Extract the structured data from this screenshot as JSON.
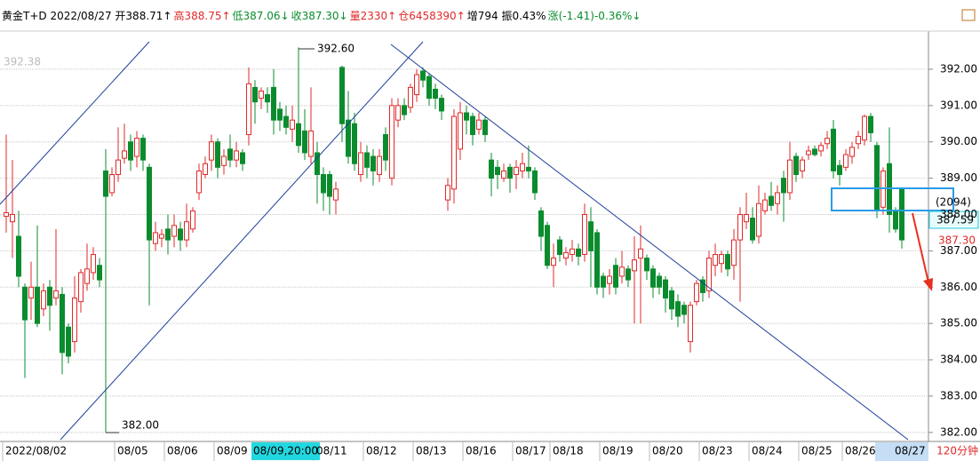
{
  "header": {
    "segments": [
      {
        "text": "黄金T+D 2022/08/27 开388.71↑",
        "color": "#000000"
      },
      {
        "text": "高388.75↑",
        "color": "#e0292a"
      },
      {
        "text": "低387.06↓",
        "color": "#0a8c2e"
      },
      {
        "text": "收387.30↓",
        "color": "#0a8c2e"
      },
      {
        "text": "量2330↑",
        "color": "#e0292a"
      },
      {
        "text": "仓6458390↑",
        "color": "#e0292a"
      },
      {
        "text": "增794 振0.43%",
        "color": "#000000"
      },
      {
        "text": "涨(-1.41)-0.36%↓",
        "color": "#0a8c2e"
      }
    ]
  },
  "chart_data": {
    "type": "candlestick",
    "up_color": "#e0292a",
    "down_color": "#0a8c2e",
    "ylim": [
      381.8,
      393.05
    ],
    "yticks": [
      {
        "value": 382,
        "label": "382.00"
      },
      {
        "value": 383,
        "label": "383.00"
      },
      {
        "value": 384,
        "label": "384.00"
      },
      {
        "value": 385,
        "label": "385.00"
      },
      {
        "value": 386,
        "label": "386.00"
      },
      {
        "value": 387,
        "label": "387.00"
      },
      {
        "value": 388,
        "label": "388.00"
      },
      {
        "value": 389,
        "label": "389.00"
      },
      {
        "value": 390,
        "label": "390.00"
      },
      {
        "value": 391,
        "label": "391.00"
      },
      {
        "value": 392,
        "label": "392.00"
      }
    ],
    "grid": true,
    "period": "120分钟",
    "annotations": [
      "392.60",
      "382.00",
      "392.38"
    ],
    "crosshair": {
      "x_label": "08/09,20:00",
      "y_label": "387.59",
      "count_label": "(2094)"
    },
    "last_price_label": "387.30",
    "categories": [
      "2022/08/02",
      null,
      null,
      null,
      null,
      null,
      null,
      null,
      null,
      null,
      null,
      null,
      null,
      null,
      null,
      null,
      null,
      null,
      "08/05",
      null,
      null,
      null,
      null,
      null,
      null,
      null,
      "08/06",
      null,
      null,
      null,
      null,
      null,
      null,
      null,
      "08/09",
      null,
      null,
      null,
      null,
      null,
      null,
      null,
      null,
      null,
      null,
      null,
      null,
      null,
      null,
      null,
      "08/11",
      null,
      null,
      null,
      null,
      null,
      null,
      null,
      "08/12",
      null,
      null,
      null,
      null,
      null,
      null,
      null,
      "08/13",
      null,
      null,
      null,
      null,
      null,
      null,
      null,
      "08/16",
      null,
      null,
      null,
      null,
      null,
      null,
      null,
      "08/17",
      null,
      null,
      null,
      null,
      null,
      "08/18",
      null,
      null,
      null,
      null,
      null,
      null,
      null,
      "08/19",
      null,
      null,
      null,
      null,
      null,
      null,
      null,
      "08/20",
      null,
      null,
      null,
      null,
      null,
      null,
      null,
      "08/23",
      null,
      null,
      null,
      null,
      null,
      null,
      null,
      "08/24",
      null,
      null,
      null,
      null,
      null,
      null,
      null,
      "08/25",
      null,
      null,
      null,
      null,
      null,
      null,
      "08/26",
      null,
      null,
      null,
      null,
      null,
      null,
      null,
      "08/27",
      null
    ],
    "ohlc": [
      [
        387.95,
        390.2,
        387.5,
        388.05
      ],
      [
        387.8,
        389.5,
        386.8,
        388.0
      ],
      [
        387.4,
        388.1,
        386.0,
        386.3
      ],
      [
        386.0,
        386.1,
        383.5,
        385.1
      ],
      [
        385.7,
        386.7,
        385.1,
        386.0
      ],
      [
        386.0,
        387.7,
        384.9,
        385.0
      ],
      [
        385.4,
        386.1,
        385.2,
        385.9
      ],
      [
        386.0,
        386.2,
        384.8,
        385.5
      ],
      [
        385.7,
        387.6,
        385.5,
        385.9
      ],
      [
        385.8,
        386.0,
        383.6,
        384.2
      ],
      [
        384.9,
        385.0,
        383.9,
        384.1
      ],
      [
        384.5,
        386.3,
        384.2,
        385.7
      ],
      [
        385.6,
        386.5,
        385.3,
        386.4
      ],
      [
        386.1,
        387.2,
        385.9,
        386.5
      ],
      [
        386.4,
        387.1,
        386.2,
        386.9
      ],
      [
        386.6,
        386.8,
        386.0,
        386.2
      ],
      [
        389.2,
        389.8,
        382.0,
        388.5
      ],
      [
        388.6,
        389.3,
        388.5,
        389.1
      ],
      [
        389.1,
        390.4,
        388.9,
        389.5
      ],
      [
        389.55,
        390.5,
        389.4,
        389.75
      ],
      [
        390.0,
        390.2,
        389.2,
        389.5
      ],
      [
        389.6,
        390.3,
        389.3,
        390.1
      ],
      [
        390.1,
        390.2,
        389.2,
        389.5
      ],
      [
        389.3,
        389.4,
        385.5,
        387.3
      ],
      [
        387.2,
        387.8,
        387.0,
        387.5
      ],
      [
        387.35,
        387.6,
        387.1,
        387.45
      ],
      [
        387.6,
        388.0,
        386.9,
        387.3
      ],
      [
        387.4,
        388.0,
        387.1,
        387.7
      ],
      [
        387.6,
        387.8,
        387.0,
        387.3
      ],
      [
        387.3,
        388.3,
        387.1,
        387.8
      ],
      [
        387.6,
        388.2,
        387.5,
        388.1
      ],
      [
        388.6,
        389.4,
        388.4,
        389.2
      ],
      [
        389.1,
        389.6,
        389.0,
        389.4
      ],
      [
        389.5,
        390.2,
        389.2,
        390.0
      ],
      [
        390.0,
        390.1,
        389.0,
        389.3
      ],
      [
        389.35,
        389.8,
        389.1,
        389.6
      ],
      [
        389.8,
        390.2,
        389.3,
        389.5
      ],
      [
        389.5,
        390.0,
        389.3,
        389.75
      ],
      [
        389.7,
        389.8,
        389.2,
        389.4
      ],
      [
        390.2,
        392.05,
        389.9,
        391.6
      ],
      [
        391.5,
        391.7,
        390.5,
        391.1
      ],
      [
        391.2,
        391.5,
        390.9,
        391.4
      ],
      [
        391.3,
        391.5,
        390.8,
        391.1
      ],
      [
        391.5,
        392.0,
        390.2,
        390.6
      ],
      [
        390.9,
        391.1,
        390.3,
        390.6
      ],
      [
        390.7,
        391.0,
        390.2,
        390.4
      ],
      [
        390.35,
        391.0,
        390.0,
        390.6
      ],
      [
        390.5,
        392.6,
        389.7,
        389.9
      ],
      [
        390.3,
        390.9,
        389.5,
        389.7
      ],
      [
        389.6,
        391.5,
        389.4,
        390.3
      ],
      [
        389.7,
        390.0,
        388.3,
        389.1
      ],
      [
        389.1,
        389.3,
        388.1,
        388.6
      ],
      [
        389.1,
        389.2,
        388.0,
        388.5
      ],
      [
        388.4,
        388.9,
        388.0,
        388.7
      ],
      [
        392.05,
        392.1,
        390.0,
        390.5
      ],
      [
        390.6,
        391.4,
        389.4,
        389.6
      ],
      [
        390.5,
        390.8,
        389.2,
        389.4
      ],
      [
        389.1,
        390.0,
        388.9,
        389.7
      ],
      [
        389.7,
        389.9,
        389.0,
        389.3
      ],
      [
        389.6,
        389.8,
        388.8,
        389.2
      ],
      [
        389.1,
        389.8,
        388.9,
        389.6
      ],
      [
        390.2,
        390.4,
        389.2,
        389.5
      ],
      [
        389.0,
        391.2,
        388.8,
        391.0
      ],
      [
        390.6,
        391.2,
        390.4,
        391.0
      ],
      [
        391.0,
        391.2,
        390.6,
        390.75
      ],
      [
        390.95,
        391.6,
        390.8,
        391.5
      ],
      [
        391.3,
        392.0,
        391.1,
        391.85
      ],
      [
        391.95,
        392.05,
        391.5,
        391.7
      ],
      [
        391.8,
        391.9,
        391.0,
        391.2
      ],
      [
        391.45,
        391.6,
        390.9,
        391.2
      ],
      [
        391.2,
        391.3,
        390.6,
        390.85
      ],
      [
        388.4,
        389.0,
        388.1,
        388.8
      ],
      [
        388.7,
        390.9,
        388.3,
        390.7
      ],
      [
        389.8,
        391.1,
        389.5,
        390.8
      ],
      [
        390.8,
        391.0,
        390.2,
        390.6
      ],
      [
        390.7,
        390.8,
        389.9,
        390.2
      ],
      [
        390.35,
        390.8,
        390.2,
        390.6
      ],
      [
        390.6,
        390.7,
        390.0,
        390.2
      ],
      [
        389.5,
        389.7,
        388.5,
        389.0
      ],
      [
        389.3,
        389.5,
        388.7,
        389.1
      ],
      [
        389.0,
        389.4,
        388.9,
        389.2
      ],
      [
        389.3,
        389.4,
        388.6,
        389.0
      ],
      [
        389.1,
        389.5,
        388.7,
        389.3
      ],
      [
        389.2,
        389.7,
        389.0,
        389.4
      ],
      [
        389.3,
        389.9,
        389.0,
        389.2
      ],
      [
        389.2,
        389.3,
        388.4,
        388.6
      ],
      [
        388.1,
        388.2,
        387.0,
        387.4
      ],
      [
        387.7,
        387.8,
        386.5,
        386.6
      ],
      [
        386.6,
        387.2,
        386.0,
        386.8
      ],
      [
        387.3,
        387.4,
        386.7,
        386.9
      ],
      [
        386.8,
        387.1,
        386.6,
        386.95
      ],
      [
        386.9,
        387.3,
        386.7,
        387.05
      ],
      [
        387.05,
        387.2,
        386.6,
        386.85
      ],
      [
        386.9,
        388.3,
        386.7,
        388.0
      ],
      [
        387.8,
        388.2,
        386.0,
        387.0
      ],
      [
        387.5,
        387.6,
        385.8,
        386.0
      ],
      [
        386.3,
        386.4,
        385.7,
        386.0
      ],
      [
        386.1,
        386.5,
        385.8,
        386.3
      ],
      [
        386.6,
        386.8,
        385.8,
        386.0
      ],
      [
        386.3,
        387.0,
        386.1,
        386.55
      ],
      [
        386.5,
        386.6,
        386.0,
        386.2
      ],
      [
        386.45,
        387.4,
        385.0,
        386.75
      ],
      [
        386.8,
        387.7,
        385.0,
        387.05
      ],
      [
        386.8,
        386.9,
        386.2,
        386.45
      ],
      [
        386.5,
        386.6,
        385.7,
        386.0
      ],
      [
        386.3,
        386.4,
        385.8,
        386.0
      ],
      [
        386.2,
        386.3,
        385.3,
        385.7
      ],
      [
        385.9,
        386.0,
        385.1,
        385.4
      ],
      [
        385.6,
        385.8,
        384.9,
        385.2
      ],
      [
        385.5,
        385.6,
        385.0,
        385.25
      ],
      [
        384.5,
        385.6,
        384.2,
        385.5
      ],
      [
        385.6,
        386.2,
        385.5,
        386.1
      ],
      [
        386.2,
        386.3,
        385.6,
        385.85
      ],
      [
        385.9,
        387.0,
        385.7,
        386.8
      ],
      [
        386.6,
        387.2,
        386.3,
        386.9
      ],
      [
        386.65,
        387.0,
        386.4,
        386.9
      ],
      [
        386.9,
        387.0,
        386.3,
        386.5
      ],
      [
        386.6,
        387.6,
        386.2,
        387.3
      ],
      [
        387.3,
        388.2,
        385.6,
        388.0
      ],
      [
        387.8,
        388.6,
        387.6,
        388.0
      ],
      [
        387.9,
        388.2,
        387.2,
        387.3
      ],
      [
        387.4,
        388.8,
        387.2,
        388.3
      ],
      [
        388.1,
        388.6,
        388.0,
        388.4
      ],
      [
        388.5,
        388.9,
        388.1,
        388.25
      ],
      [
        388.3,
        388.8,
        388.0,
        388.6
      ],
      [
        389.0,
        389.2,
        387.8,
        388.6
      ],
      [
        388.6,
        390.0,
        388.4,
        389.5
      ],
      [
        389.6,
        389.7,
        388.9,
        389.1
      ],
      [
        389.2,
        389.6,
        389.0,
        389.5
      ],
      [
        389.65,
        389.9,
        389.5,
        389.75
      ],
      [
        389.8,
        389.9,
        389.6,
        389.65
      ],
      [
        389.75,
        390.0,
        389.6,
        389.9
      ],
      [
        389.95,
        390.3,
        389.8,
        390.1
      ],
      [
        390.35,
        390.6,
        389.0,
        389.2
      ],
      [
        389.35,
        389.5,
        388.8,
        389.1
      ],
      [
        389.3,
        389.8,
        389.2,
        389.65
      ],
      [
        389.6,
        390.0,
        389.4,
        389.85
      ],
      [
        389.95,
        390.3,
        389.8,
        390.15
      ],
      [
        390.05,
        390.75,
        389.9,
        390.7
      ],
      [
        390.7,
        390.8,
        390.0,
        390.25
      ],
      [
        389.9,
        390.0,
        387.9,
        388.1
      ],
      [
        388.2,
        389.3,
        388.0,
        389.2
      ],
      [
        389.4,
        390.4,
        387.5,
        388.0
      ],
      [
        388.1,
        388.2,
        387.5,
        387.6
      ],
      [
        388.7,
        388.75,
        387.06,
        387.3
      ]
    ]
  }
}
